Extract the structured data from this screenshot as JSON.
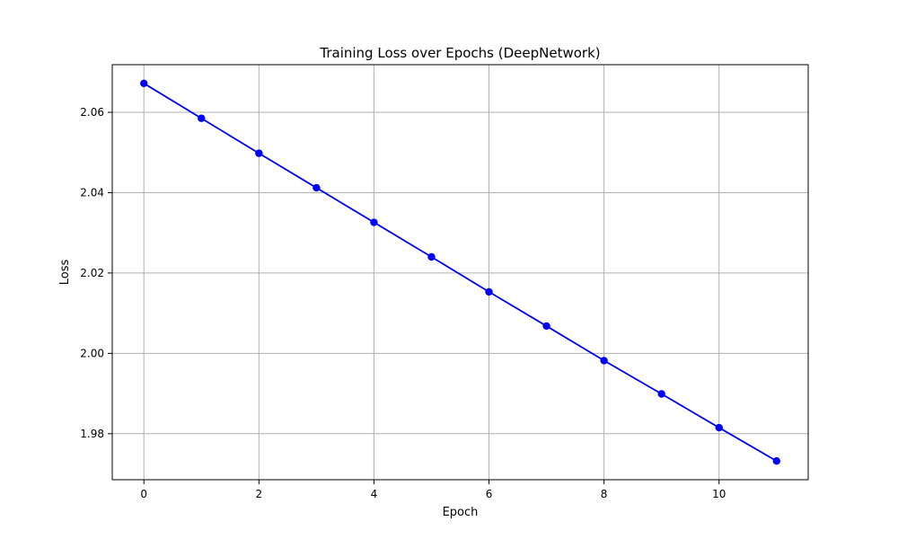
{
  "chart_data": {
    "type": "line",
    "title": "Training Loss over Epochs (DeepNetwork)",
    "xlabel": "Epoch",
    "ylabel": "Loss",
    "x": [
      0,
      1,
      2,
      3,
      4,
      5,
      6,
      7,
      8,
      9,
      10,
      11
    ],
    "series": [
      {
        "values": [
          2.0672,
          2.0585,
          2.0498,
          2.0412,
          2.0326,
          2.024,
          2.0153,
          2.0068,
          1.9982,
          1.9899,
          1.9815,
          1.9732
        ],
        "color": "#0000ff",
        "marker": "circle"
      }
    ],
    "xlim": [
      -0.55,
      11.55
    ],
    "ylim": [
      1.96855,
      2.07185
    ],
    "xticks": [
      0,
      2,
      4,
      6,
      8,
      10
    ],
    "yticks": [
      1.98,
      2.0,
      2.02,
      2.04,
      2.06
    ],
    "xtick_labels": [
      "0",
      "2",
      "4",
      "6",
      "8",
      "10"
    ],
    "ytick_labels": [
      "1.98",
      "2.00",
      "2.02",
      "2.04",
      "2.06"
    ],
    "grid": true
  }
}
